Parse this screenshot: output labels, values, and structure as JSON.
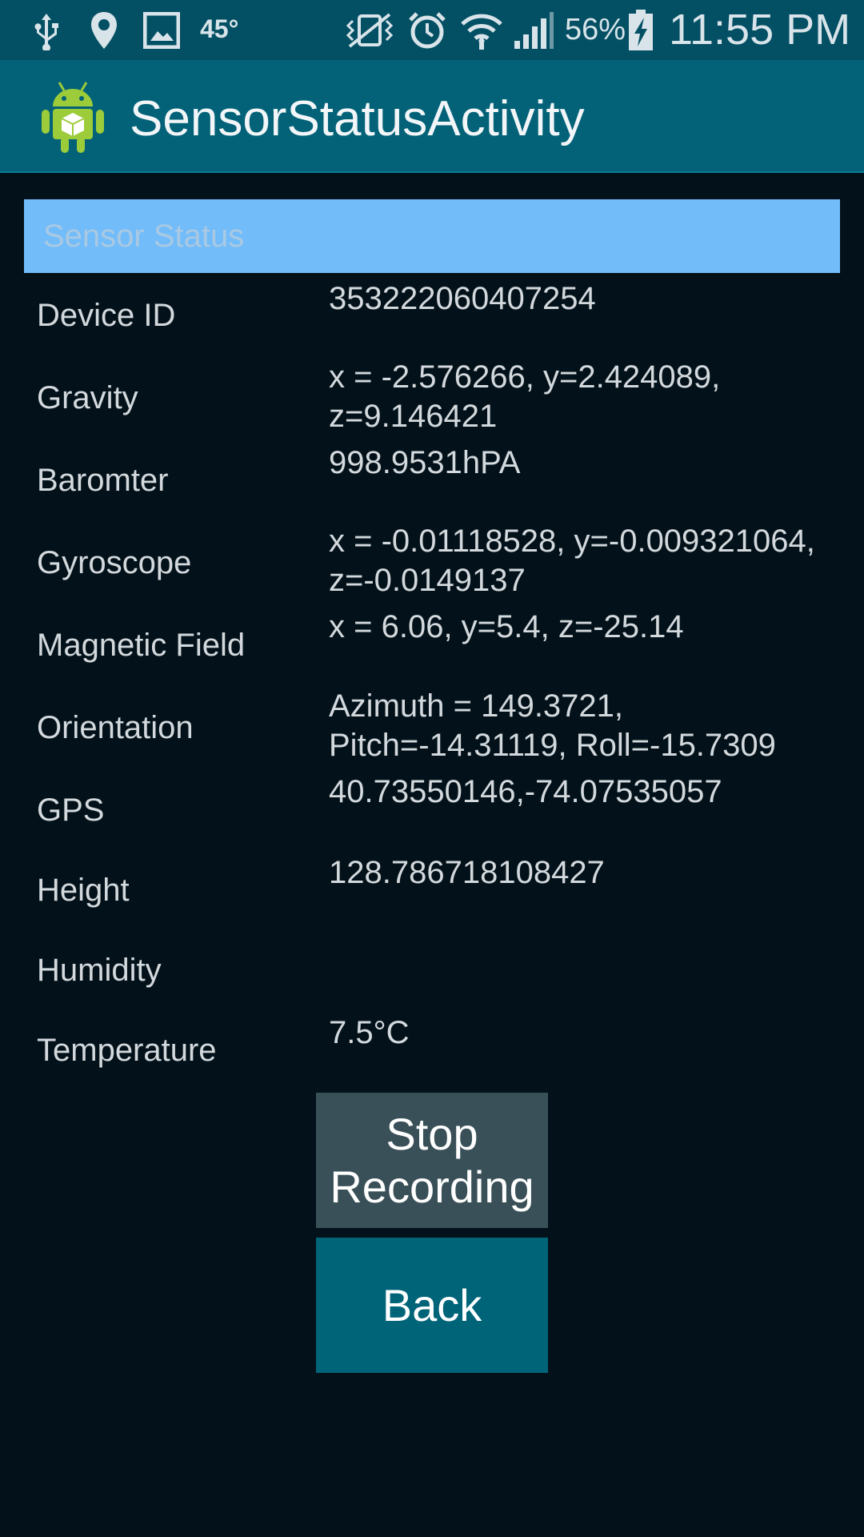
{
  "status_bar": {
    "temperature": "45°",
    "battery": "56%",
    "time": "11:55 PM",
    "icons": [
      "usb-icon",
      "location-icon",
      "image-icon",
      "mute-vibrate-icon",
      "alarm-icon",
      "wifi-icon",
      "signal-icon",
      "battery-charging-icon"
    ]
  },
  "action_bar": {
    "title": "SensorStatusActivity",
    "icon": "android-app-icon"
  },
  "sensor": {
    "header": "Sensor Status",
    "rows": [
      {
        "label": "Device ID",
        "value": "353222060407254"
      },
      {
        "label": "Gravity",
        "value": "x = -2.576266, y=2.424089, z=9.146421"
      },
      {
        "label": "Baromter",
        "value": "998.9531hPA"
      },
      {
        "label": "Gyroscope",
        "value": "x = -0.01118528, y=-0.009321064, z=-0.0149137"
      },
      {
        "label": "Magnetic Field",
        "value": "x = 6.06, y=5.4, z=-25.14"
      },
      {
        "label": "Orientation",
        "value": "Azimuth = 149.3721, Pitch=-14.31119, Roll=-15.7309"
      },
      {
        "label": "GPS",
        "value": "40.73550146,-74.07535057"
      },
      {
        "label": "Height",
        "value": "128.786718108427"
      },
      {
        "label": "Humidity",
        "value": ""
      },
      {
        "label": "Temperature",
        "value": "7.5°C"
      }
    ]
  },
  "buttons": {
    "stop": "Stop Recording",
    "back": "Back"
  }
}
